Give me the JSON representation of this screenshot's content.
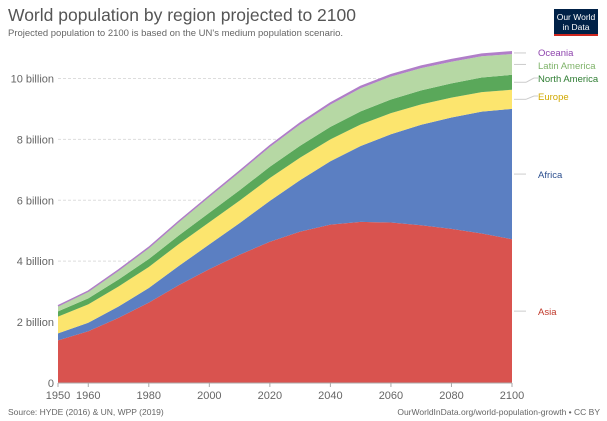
{
  "title": "World population by region projected to 2100",
  "subtitle": "Projected population to 2100 is based on the UN's medium population scenario.",
  "logo": {
    "line1": "Our World",
    "line2": "in Data"
  },
  "footer": {
    "source": "Source: HYDE (2016) & UN, WPP (2019)",
    "url": "OurWorldInData.org/world-population-growth • CC BY"
  },
  "chart_data": {
    "type": "area",
    "stacked": true,
    "title": "World population by region projected to 2100",
    "xlabel": "",
    "ylabel": "",
    "xlim": [
      1950,
      2100
    ],
    "ylim": [
      0,
      11
    ],
    "x_ticks": [
      1950,
      1960,
      1980,
      2000,
      2020,
      2040,
      2060,
      2080,
      2100
    ],
    "y_ticks": [
      {
        "value": 0,
        "label": "0"
      },
      {
        "value": 2,
        "label": "2 billion"
      },
      {
        "value": 4,
        "label": "4 billion"
      },
      {
        "value": 6,
        "label": "6 billion"
      },
      {
        "value": 8,
        "label": "8 billion"
      },
      {
        "value": 10,
        "label": "10 billion"
      }
    ],
    "grid": true,
    "x": [
      1950,
      1960,
      1970,
      1980,
      1990,
      2000,
      2010,
      2020,
      2030,
      2040,
      2050,
      2060,
      2070,
      2080,
      2090,
      2100
    ],
    "series": [
      {
        "name": "Asia",
        "color": "#d9534f",
        "values": [
          1.4,
          1.7,
          2.14,
          2.64,
          3.22,
          3.74,
          4.21,
          4.64,
          4.97,
          5.2,
          5.29,
          5.27,
          5.18,
          5.06,
          4.91,
          4.72
        ]
      },
      {
        "name": "Africa",
        "color": "#5b7fc2",
        "values": [
          0.23,
          0.28,
          0.37,
          0.48,
          0.63,
          0.81,
          1.04,
          1.34,
          1.69,
          2.08,
          2.49,
          2.9,
          3.3,
          3.66,
          4.0,
          4.28
        ]
      },
      {
        "name": "Europe",
        "color": "#fce56e",
        "values": [
          0.55,
          0.6,
          0.66,
          0.69,
          0.72,
          0.73,
          0.74,
          0.75,
          0.74,
          0.72,
          0.71,
          0.69,
          0.67,
          0.65,
          0.64,
          0.63
        ]
      },
      {
        "name": "North America",
        "color": "#5aa85a",
        "values": [
          0.17,
          0.2,
          0.23,
          0.26,
          0.28,
          0.31,
          0.34,
          0.37,
          0.39,
          0.41,
          0.43,
          0.45,
          0.46,
          0.47,
          0.48,
          0.49
        ]
      },
      {
        "name": "Latin America",
        "color": "#b6d8a4",
        "values": [
          0.17,
          0.22,
          0.29,
          0.36,
          0.44,
          0.52,
          0.59,
          0.65,
          0.7,
          0.73,
          0.76,
          0.75,
          0.73,
          0.71,
          0.7,
          0.68
        ]
      },
      {
        "name": "Oceania",
        "color": "#b07ec8",
        "values": [
          0.013,
          0.016,
          0.02,
          0.023,
          0.027,
          0.031,
          0.037,
          0.043,
          0.048,
          0.053,
          0.057,
          0.061,
          0.065,
          0.068,
          0.071,
          0.075
        ]
      }
    ],
    "label_colors": {
      "Asia": "#c0392b",
      "Africa": "#2c4f8f",
      "Europe": "#d1a800",
      "North America": "#2e7d32",
      "Latin America": "#7fb36a",
      "Oceania": "#8e44ad"
    },
    "legend": "right"
  }
}
